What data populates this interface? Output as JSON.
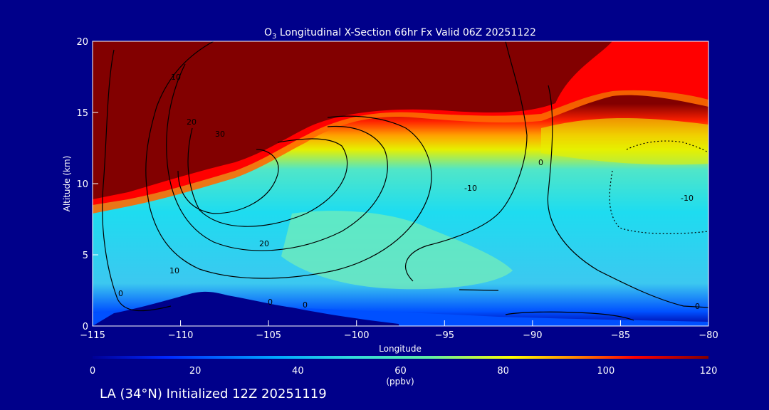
{
  "chart_data": {
    "type": "heatmap",
    "title_prefix": "O",
    "title_subscript": "3",
    "title_rest": " Longitudinal X-Section 66hr  Fx Valid 06Z 20251122",
    "xlabel": "Longitude",
    "ylabel": "Altitude (km)",
    "xlim": [
      -115,
      -80
    ],
    "ylim": [
      0,
      20
    ],
    "x_ticks": [
      -115,
      -110,
      -105,
      -100,
      -95,
      -90,
      -85,
      -80
    ],
    "x_tick_labels": [
      "−115",
      "−110",
      "−105",
      "−100",
      "−95",
      "−90",
      "−85",
      "−80"
    ],
    "y_ticks": [
      0,
      5,
      10,
      15,
      20
    ],
    "colorbar": {
      "range": [
        0,
        120
      ],
      "ticks": [
        0,
        20,
        40,
        60,
        80,
        100,
        120
      ],
      "unit_label": "(ppbv)",
      "colors": [
        "#000096",
        "#0028ff",
        "#00aaff",
        "#32dcdc",
        "#64f0a0",
        "#ffff00",
        "#ff8c00",
        "#ff0000",
        "#820000"
      ]
    },
    "field": "ozone mixing ratio (ppbv), stratospheric air above ~15 km, tropopause fold near -112 to -105",
    "contour_labels": [
      "10",
      "20",
      "30",
      "20",
      "10",
      "0",
      "0",
      "0",
      "-10",
      "0",
      "-10",
      "0"
    ],
    "terrain": "elevated topography between -113 and -103 peaking near 2 km at -109"
  },
  "footer": {
    "init_label": "LA (34°N) Initialized 12Z 20251119"
  }
}
